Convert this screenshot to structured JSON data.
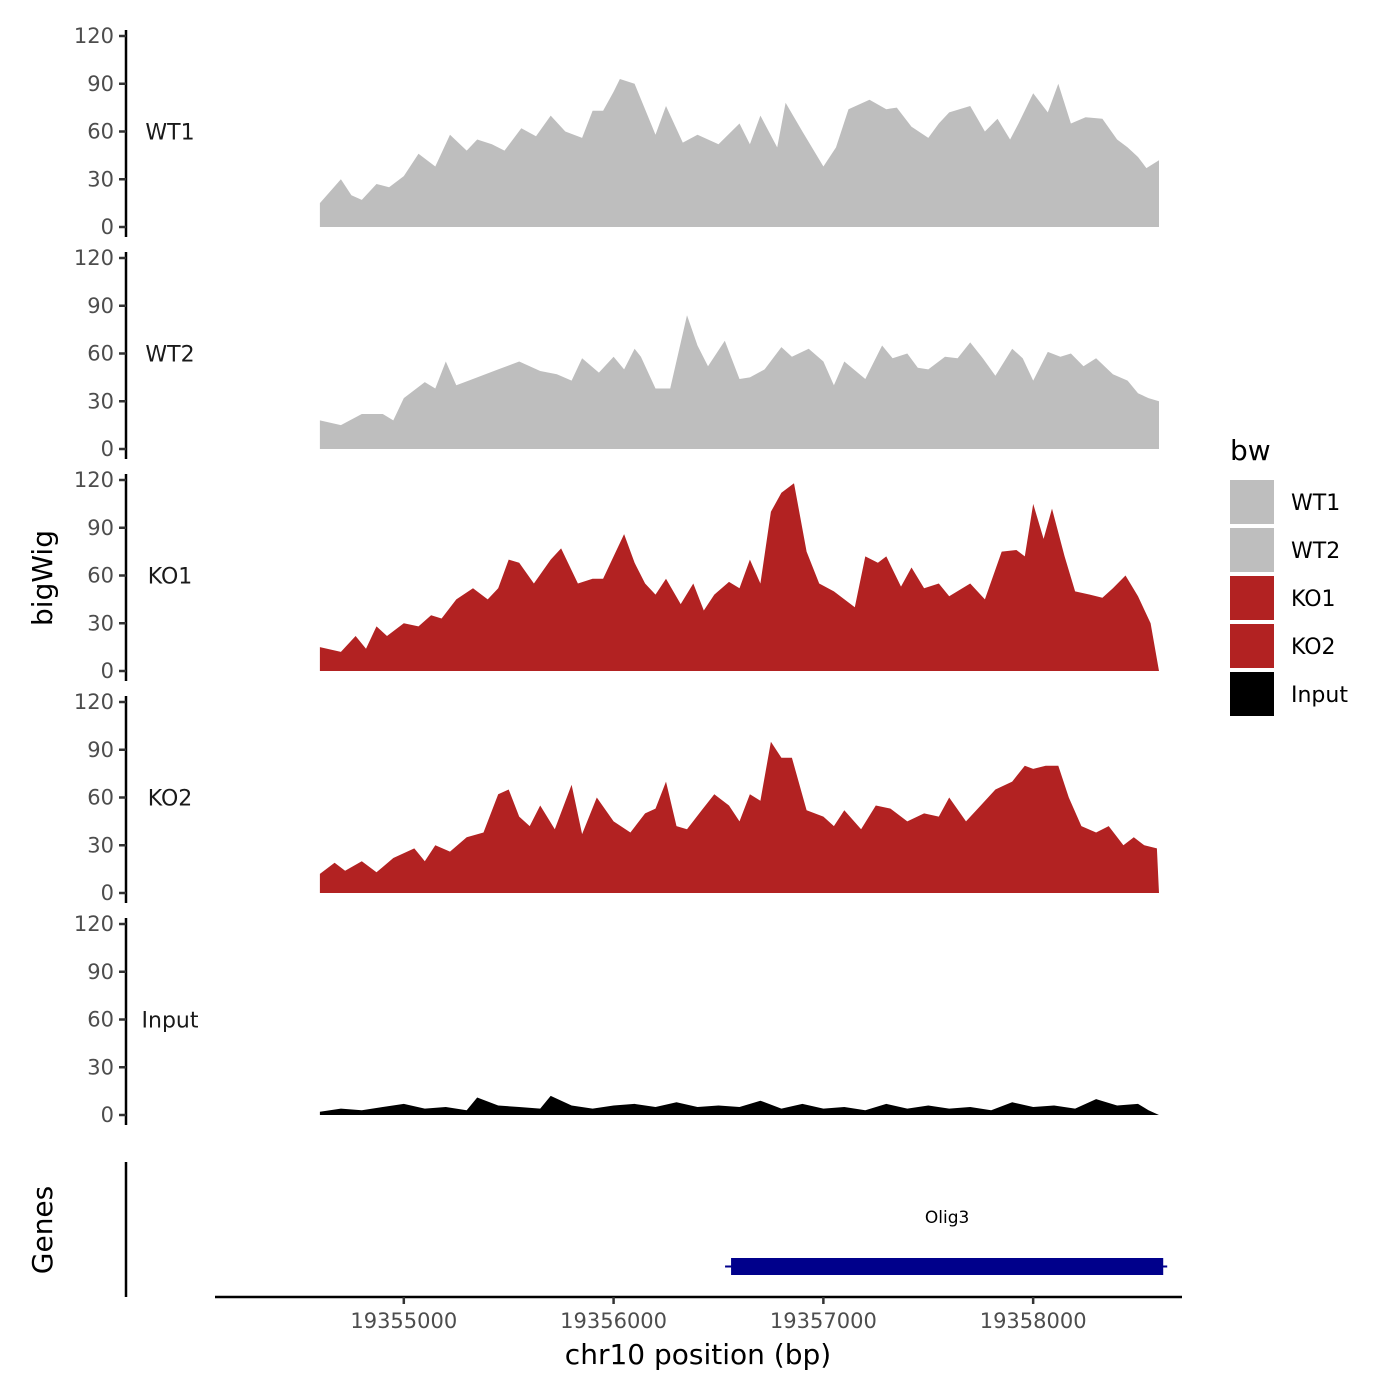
{
  "chart_data": {
    "type": "area",
    "chromosome": "chr10",
    "xlabel": "chr10 position (bp)",
    "ylabel": "bigWig",
    "genes_ylabel": "Genes",
    "xlim": [
      19354100,
      19358700
    ],
    "ylim": [
      0,
      120
    ],
    "x_ticks": [
      19355000,
      19356000,
      19357000,
      19358000
    ],
    "y_ticks": [
      0,
      30,
      60,
      90,
      120
    ],
    "legend": {
      "title": "bw",
      "position": "right",
      "entries": [
        {
          "name": "WT1",
          "color": "#bebebe"
        },
        {
          "name": "WT2",
          "color": "#bebebe"
        },
        {
          "name": "KO1",
          "color": "#b22222"
        },
        {
          "name": "KO2",
          "color": "#b22222"
        },
        {
          "name": "Input",
          "color": "#000000"
        }
      ]
    },
    "series": [
      {
        "name": "WT1",
        "color": "#bebebe",
        "x": [
          19354600,
          19354700,
          19354750,
          19354800,
          19354870,
          19354930,
          19355000,
          19355070,
          19355150,
          19355220,
          19355300,
          19355350,
          19355420,
          19355480,
          19355560,
          19355630,
          19355700,
          19355770,
          19355850,
          19355900,
          19355950,
          19356000,
          19356030,
          19356100,
          19356200,
          19356250,
          19356330,
          19356400,
          19356500,
          19356600,
          19356650,
          19356700,
          19356780,
          19356820,
          19356900,
          19357000,
          19357060,
          19357120,
          19357220,
          19357300,
          19357350,
          19357420,
          19357500,
          19357550,
          19357600,
          19357700,
          19357770,
          19357830,
          19357890,
          19357930,
          19358000,
          19358070,
          19358120,
          19358180,
          19358250,
          19358330,
          19358400,
          19358450,
          19358500,
          19358540,
          19358600
        ],
        "values": [
          15,
          30,
          20,
          17,
          27,
          25,
          32,
          46,
          38,
          58,
          48,
          55,
          52,
          48,
          62,
          57,
          70,
          60,
          56,
          73,
          73,
          85,
          93,
          90,
          58,
          76,
          53,
          58,
          52,
          65,
          52,
          70,
          50,
          78,
          60,
          38,
          50,
          74,
          80,
          74,
          75,
          63,
          56,
          65,
          72,
          76,
          60,
          68,
          55,
          65,
          84,
          72,
          90,
          65,
          69,
          68,
          55,
          50,
          44,
          37,
          42
        ]
      },
      {
        "name": "WT2",
        "color": "#bebebe",
        "x": [
          19354600,
          19354700,
          19354800,
          19354900,
          19354950,
          19355000,
          19355100,
          19355150,
          19355200,
          19355250,
          19355350,
          19355450,
          19355550,
          19355650,
          19355730,
          19355800,
          19355850,
          19355930,
          19356000,
          19356050,
          19356100,
          19356130,
          19356200,
          19356270,
          19356350,
          19356400,
          19356450,
          19356530,
          19356600,
          19356650,
          19356720,
          19356800,
          19356850,
          19356930,
          19357000,
          19357050,
          19357100,
          19357200,
          19357280,
          19357330,
          19357400,
          19357450,
          19357500,
          19357580,
          19357640,
          19357700,
          19357760,
          19357820,
          19357900,
          19357950,
          19358000,
          19358070,
          19358130,
          19358180,
          19358240,
          19358300,
          19358380,
          19358450,
          19358500,
          19358550,
          19358600
        ],
        "values": [
          18,
          15,
          22,
          22,
          18,
          32,
          42,
          38,
          55,
          40,
          45,
          50,
          55,
          49,
          47,
          43,
          57,
          48,
          58,
          50,
          63,
          58,
          38,
          38,
          84,
          65,
          52,
          68,
          44,
          45,
          50,
          64,
          58,
          63,
          55,
          40,
          55,
          44,
          65,
          57,
          60,
          51,
          50,
          58,
          57,
          67,
          57,
          46,
          63,
          57,
          43,
          61,
          58,
          60,
          52,
          57,
          47,
          43,
          35,
          32,
          30
        ]
      },
      {
        "name": "KO1",
        "color": "#b22222",
        "x": [
          19354600,
          19354700,
          19354770,
          19354820,
          19354870,
          19354920,
          19355000,
          19355070,
          19355130,
          19355180,
          19355250,
          19355330,
          19355400,
          19355450,
          19355500,
          19355550,
          19355620,
          19355700,
          19355750,
          19355830,
          19355900,
          19355950,
          19356000,
          19356050,
          19356100,
          19356150,
          19356200,
          19356250,
          19356320,
          19356380,
          19356430,
          19356480,
          19356550,
          19356600,
          19356650,
          19356700,
          19356750,
          19356800,
          19356860,
          19356920,
          19356980,
          19357050,
          19357150,
          19357200,
          19357260,
          19357300,
          19357370,
          19357420,
          19357480,
          19357550,
          19357600,
          19357700,
          19357770,
          19357850,
          19357920,
          19357960,
          19358000,
          19358050,
          19358090,
          19358150,
          19358200,
          19358270,
          19358330,
          19358380,
          19358440,
          19358500,
          19358560,
          19358600
        ],
        "values": [
          15,
          12,
          22,
          14,
          28,
          22,
          30,
          28,
          35,
          33,
          45,
          52,
          45,
          52,
          70,
          68,
          55,
          70,
          77,
          55,
          58,
          58,
          72,
          86,
          68,
          55,
          48,
          58,
          42,
          55,
          38,
          48,
          56,
          52,
          70,
          55,
          100,
          112,
          118,
          75,
          55,
          50,
          40,
          72,
          68,
          72,
          53,
          65,
          52,
          55,
          47,
          55,
          45,
          75,
          76,
          72,
          105,
          83,
          102,
          72,
          50,
          48,
          46,
          52,
          60,
          47,
          30,
          0
        ]
      },
      {
        "name": "KO2",
        "color": "#b22222",
        "x": [
          19354600,
          19354670,
          19354720,
          19354800,
          19354870,
          19354950,
          19355050,
          19355100,
          19355150,
          19355220,
          19355300,
          19355380,
          19355450,
          19355500,
          19355550,
          19355600,
          19355650,
          19355720,
          19355800,
          19355850,
          19355920,
          19356000,
          19356080,
          19356150,
          19356200,
          19356250,
          19356300,
          19356350,
          19356420,
          19356480,
          19356550,
          19356600,
          19356650,
          19356700,
          19356750,
          19356800,
          19356850,
          19356920,
          19357000,
          19357050,
          19357100,
          19357180,
          19357250,
          19357320,
          19357400,
          19357480,
          19357550,
          19357600,
          19357680,
          19357750,
          19357820,
          19357900,
          19357960,
          19358000,
          19358060,
          19358120,
          19358170,
          19358230,
          19358300,
          19358360,
          19358430,
          19358480,
          19358530,
          19358590,
          19358600
        ],
        "values": [
          12,
          19,
          14,
          20,
          13,
          22,
          28,
          20,
          30,
          26,
          35,
          38,
          62,
          65,
          48,
          42,
          55,
          40,
          68,
          37,
          60,
          45,
          38,
          50,
          53,
          70,
          42,
          40,
          52,
          62,
          55,
          45,
          62,
          58,
          95,
          85,
          85,
          52,
          48,
          42,
          52,
          40,
          55,
          53,
          45,
          50,
          48,
          60,
          45,
          55,
          65,
          70,
          80,
          78,
          80,
          80,
          60,
          42,
          38,
          42,
          30,
          35,
          30,
          28,
          0
        ]
      },
      {
        "name": "Input",
        "color": "#000000",
        "x": [
          19354600,
          19354700,
          19354800,
          19354900,
          19355000,
          19355100,
          19355200,
          19355300,
          19355350,
          19355450,
          19355550,
          19355650,
          19355700,
          19355800,
          19355900,
          19356000,
          19356100,
          19356200,
          19356300,
          19356400,
          19356500,
          19356600,
          19356700,
          19356800,
          19356900,
          19357000,
          19357100,
          19357200,
          19357300,
          19357400,
          19357500,
          19357600,
          19357700,
          19357800,
          19357900,
          19358000,
          19358100,
          19358200,
          19358300,
          19358400,
          19358500,
          19358550,
          19358600
        ],
        "values": [
          2,
          4,
          3,
          5,
          7,
          4,
          5,
          3,
          11,
          6,
          5,
          4,
          12,
          6,
          4,
          6,
          7,
          5,
          8,
          5,
          6,
          5,
          9,
          4,
          7,
          4,
          5,
          3,
          7,
          4,
          6,
          4,
          5,
          3,
          8,
          5,
          6,
          4,
          10,
          6,
          7,
          3,
          0
        ]
      }
    ],
    "genes": [
      {
        "name": "Olig3",
        "start": 19356560,
        "end": 19358620,
        "strand": "-",
        "color": "#00008b"
      }
    ]
  }
}
